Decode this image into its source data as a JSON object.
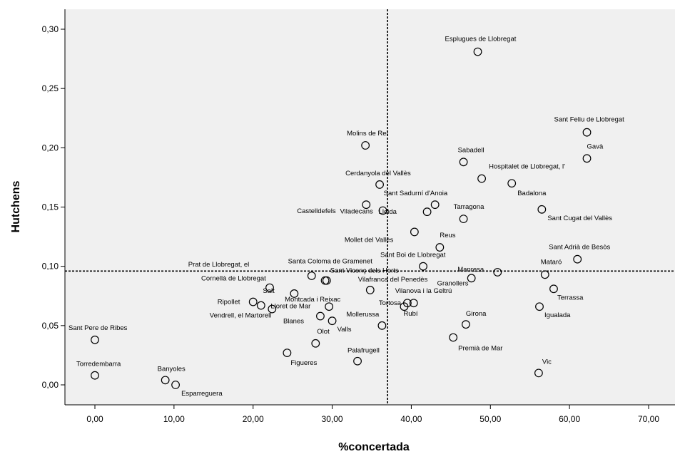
{
  "chart_data": {
    "type": "scatter",
    "title": "",
    "xlabel": "%concertada",
    "ylabel": "Hutchens",
    "xlim": [
      -4,
      73
    ],
    "ylim": [
      -0.017,
      0.315
    ],
    "xticks": [
      "0,00",
      "10,00",
      "20,00",
      "30,00",
      "40,00",
      "50,00",
      "60,00",
      "70,00"
    ],
    "xtick_values": [
      0,
      10,
      20,
      30,
      40,
      50,
      60,
      70
    ],
    "yticks": [
      "0,00",
      "0,05",
      "0,10",
      "0,15",
      "0,20",
      "0,25",
      "0,30"
    ],
    "ytick_values": [
      0,
      0.05,
      0.1,
      0.15,
      0.2,
      0.25,
      0.3
    ],
    "reference_lines": {
      "x": 37.0,
      "y": 0.096
    },
    "grid": false,
    "colors": {
      "plot_background": "#f0f0f0",
      "marker_stroke": "#000000",
      "reference_line": "#000000"
    },
    "points": [
      {
        "label": "Esplugues de Llobregat",
        "x": 48.4,
        "y": 0.281
      },
      {
        "label": "Sant Feliu de Llobregat",
        "x": 62.2,
        "y": 0.213
      },
      {
        "label": "Gavà",
        "x": 62.2,
        "y": 0.191
      },
      {
        "label": "Molins de Rei",
        "x": 34.2,
        "y": 0.202
      },
      {
        "label": "Sabadell",
        "x": 46.6,
        "y": 0.188
      },
      {
        "label": "Hospitalet de Llobregat, l'",
        "x": 48.9,
        "y": 0.174
      },
      {
        "label": "Cerdanyola del Vallès",
        "x": 36.0,
        "y": 0.169
      },
      {
        "label": "Badalona",
        "x": 52.7,
        "y": 0.17
      },
      {
        "label": "Sant Sadurní d'Anoia",
        "x": 43.0,
        "y": 0.152
      },
      {
        "label": "Tarragona",
        "x": 46.6,
        "y": 0.14
      },
      {
        "label": "Lleida",
        "x": 42.0,
        "y": 0.146
      },
      {
        "label": "Castelldefels",
        "x": 34.3,
        "y": 0.152
      },
      {
        "label": "Viladecans",
        "x": 36.4,
        "y": 0.147
      },
      {
        "label": "Sant Cugat del Vallès",
        "x": 56.5,
        "y": 0.148
      },
      {
        "label": "Mollet del Vallès",
        "x": 40.4,
        "y": 0.129
      },
      {
        "label": "Reus",
        "x": 43.6,
        "y": 0.116
      },
      {
        "label": "Sant Adrià de Besòs",
        "x": 61.0,
        "y": 0.106
      },
      {
        "label": "Sant Boi de Llobregat",
        "x": 41.5,
        "y": 0.1
      },
      {
        "label": "Prat de Llobregat, el",
        "x": 27.4,
        "y": 0.092
      },
      {
        "label": "Santa Coloma de Gramenet",
        "x": 29.1,
        "y": 0.088
      },
      {
        "label": "Sant Vicenç dels Horts",
        "x": 29.3,
        "y": 0.088
      },
      {
        "label": "Manresa",
        "x": 50.9,
        "y": 0.095
      },
      {
        "label": "Mataró",
        "x": 56.9,
        "y": 0.093
      },
      {
        "label": "Granollers",
        "x": 47.6,
        "y": 0.09
      },
      {
        "label": "Vilafranca del Penedès",
        "x": 34.8,
        "y": 0.08
      },
      {
        "label": "Cornellà de Llobregat",
        "x": 22.1,
        "y": 0.082
      },
      {
        "label": "Salt",
        "x": 25.2,
        "y": 0.077
      },
      {
        "label": "Terrassa",
        "x": 58.0,
        "y": 0.081
      },
      {
        "label": "Ripollet",
        "x": 20.0,
        "y": 0.07
      },
      {
        "label": "Lloret de Mar",
        "x": 22.4,
        "y": 0.064
      },
      {
        "label": "Vendrell, el Martorell",
        "x": 21.0,
        "y": 0.067
      },
      {
        "label": "Tortosa",
        "x": 39.5,
        "y": 0.069
      },
      {
        "label": "Rubí",
        "x": 39.1,
        "y": 0.066
      },
      {
        "label": "Vilanova i la Geltrú",
        "x": 40.3,
        "y": 0.069
      },
      {
        "label": "Igualada",
        "x": 56.2,
        "y": 0.066
      },
      {
        "label": "Montcada i Reixac",
        "x": 29.6,
        "y": 0.066
      },
      {
        "label": "Valls",
        "x": 30.0,
        "y": 0.054
      },
      {
        "label": "Girona",
        "x": 46.9,
        "y": 0.051
      },
      {
        "label": "Mollerussa",
        "x": 36.3,
        "y": 0.05
      },
      {
        "label": "Sant Pere de Ribes",
        "x": 0.0,
        "y": 0.038
      },
      {
        "label": "Blanes",
        "x": 28.5,
        "y": 0.058
      },
      {
        "label": "Olot",
        "x": 27.9,
        "y": 0.035
      },
      {
        "label": "Premià de Mar",
        "x": 45.3,
        "y": 0.04
      },
      {
        "label": "Figueres",
        "x": 24.3,
        "y": 0.027
      },
      {
        "label": "Palafrugell",
        "x": 33.2,
        "y": 0.02
      },
      {
        "label": "Vic",
        "x": 56.1,
        "y": 0.01
      },
      {
        "label": "Torredembarra",
        "x": 0.0,
        "y": 0.008
      },
      {
        "label": "Banyoles",
        "x": 8.9,
        "y": 0.004
      },
      {
        "label": "Esparreguera",
        "x": 10.2,
        "y": 0.0
      }
    ]
  }
}
